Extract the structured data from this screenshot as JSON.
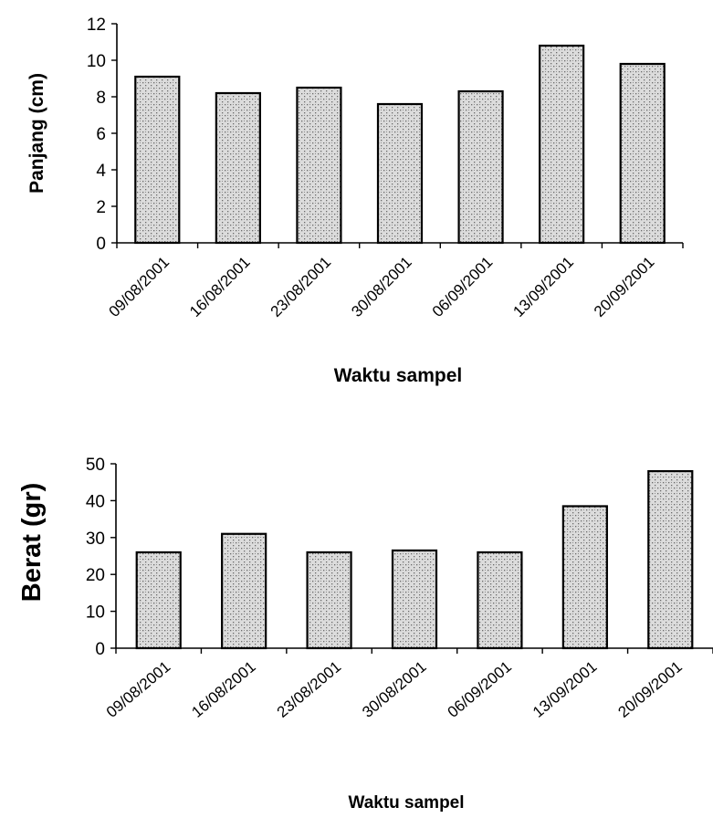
{
  "chart_data": [
    {
      "type": "bar",
      "categories": [
        "09/08/2001",
        "16/08/2001",
        "23/08/2001",
        "30/08/2001",
        "06/09/2001",
        "13/09/2001",
        "20/09/2001"
      ],
      "values": [
        9.1,
        8.2,
        8.5,
        7.6,
        8.3,
        10.8,
        9.8
      ],
      "xlabel": "Waktu sampel",
      "ylabel": "Panjang (cm)",
      "ylim": [
        0,
        12
      ],
      "yticks": [
        0,
        2,
        4,
        6,
        8,
        10,
        12
      ],
      "grid": false,
      "bar_fill": "#d4d4d4",
      "bar_stroke": "#000000"
    },
    {
      "type": "bar",
      "categories": [
        "09/08/2001",
        "16/08/2001",
        "23/08/2001",
        "30/08/2001",
        "06/09/2001",
        "13/09/2001",
        "20/09/2001"
      ],
      "values": [
        26,
        31,
        26,
        26.5,
        26,
        38.5,
        48
      ],
      "xlabel": "Waktu sampel",
      "ylabel": "Berat (gr)",
      "ylim": [
        0,
        50
      ],
      "yticks": [
        0,
        10,
        20,
        30,
        40,
        50
      ],
      "grid": false,
      "bar_fill": "#d4d4d4",
      "bar_stroke": "#000000"
    }
  ]
}
